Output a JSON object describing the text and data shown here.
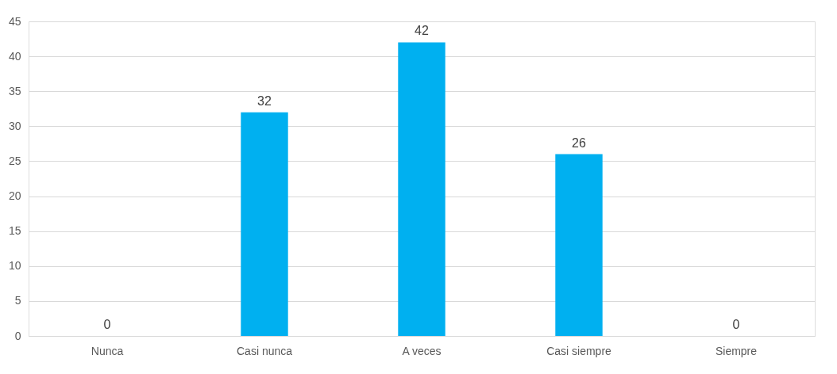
{
  "chart_data": {
    "type": "bar",
    "categories": [
      "Nunca",
      "Casi nunca",
      "A veces",
      "Casi siempre",
      "Siempre"
    ],
    "values": [
      0,
      32,
      42,
      26,
      0
    ],
    "color": "#00b0f0",
    "ylim": [
      0,
      45
    ],
    "yticks": [
      0,
      5,
      10,
      15,
      20,
      25,
      30,
      35,
      40,
      45
    ],
    "grid": "y",
    "data_labels": true
  }
}
